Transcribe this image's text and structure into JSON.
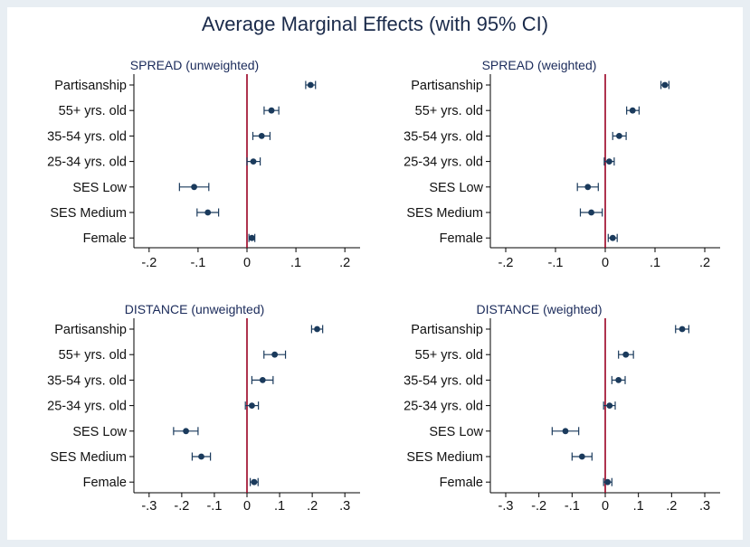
{
  "title": "Average Marginal Effects (with 95% CI)",
  "colors": {
    "point": "#1a3a5c",
    "ci": "#1a3a5c",
    "zero_line": "#990022",
    "axis": "#000000",
    "background": "#e8eef3"
  },
  "chart_data": [
    {
      "type": "scatter",
      "title": "SPREAD (unweighted)",
      "categories": [
        "Partisanship",
        "55+ yrs. old",
        "35-54 yrs. old",
        "25-34 yrs. old",
        "SES Low",
        "SES Medium",
        "Female"
      ],
      "estimates": [
        0.13,
        0.05,
        0.03,
        0.013,
        -0.108,
        -0.08,
        0.01
      ],
      "ci_low": [
        0.12,
        0.035,
        0.012,
        0.0,
        -0.138,
        -0.102,
        0.004
      ],
      "ci_high": [
        0.14,
        0.065,
        0.047,
        0.027,
        -0.078,
        -0.058,
        0.016
      ],
      "xlim": [
        -0.22,
        0.22
      ],
      "xticks": [
        -0.2,
        -0.1,
        0,
        0.1,
        0.2
      ],
      "xtick_labels": [
        "-.2",
        "-.1",
        "0",
        ".1",
        ".2"
      ]
    },
    {
      "type": "scatter",
      "title": "SPREAD (weighted)",
      "categories": [
        "Partisanship",
        "55+ yrs. old",
        "35-54 yrs. old",
        "25-34 yrs. old",
        "SES Low",
        "SES Medium",
        "Female"
      ],
      "estimates": [
        0.12,
        0.055,
        0.028,
        0.008,
        -0.035,
        -0.028,
        0.015
      ],
      "ci_low": [
        0.112,
        0.043,
        0.015,
        -0.002,
        -0.056,
        -0.05,
        0.006
      ],
      "ci_high": [
        0.128,
        0.068,
        0.042,
        0.018,
        -0.014,
        -0.006,
        0.024
      ],
      "xlim": [
        -0.22,
        0.22
      ],
      "xticks": [
        -0.2,
        -0.1,
        0,
        0.1,
        0.2
      ],
      "xtick_labels": [
        "-.2",
        "-.1",
        "0",
        ".1",
        ".2"
      ]
    },
    {
      "type": "scatter",
      "title": "DISTANCE (unweighted)",
      "categories": [
        "Partisanship",
        "55+ yrs. old",
        "35-54 yrs. old",
        "25-34 yrs. old",
        "SES Low",
        "SES Medium",
        "Female"
      ],
      "estimates": [
        0.215,
        0.085,
        0.048,
        0.015,
        -0.187,
        -0.14,
        0.022
      ],
      "ci_low": [
        0.198,
        0.052,
        0.015,
        -0.005,
        -0.225,
        -0.168,
        0.01
      ],
      "ci_high": [
        0.232,
        0.118,
        0.08,
        0.035,
        -0.15,
        -0.112,
        0.034
      ],
      "xlim": [
        -0.33,
        0.33
      ],
      "xticks": [
        -0.3,
        -0.2,
        -0.1,
        0,
        0.1,
        0.2,
        0.3
      ],
      "xtick_labels": [
        "-.3",
        "-.2",
        "-.1",
        "0",
        ".1",
        ".2",
        ".3"
      ]
    },
    {
      "type": "scatter",
      "title": "DISTANCE (weighted)",
      "categories": [
        "Partisanship",
        "55+ yrs. old",
        "35-54 yrs. old",
        "25-34 yrs. old",
        "SES Low",
        "SES Medium",
        "Female"
      ],
      "estimates": [
        0.232,
        0.062,
        0.04,
        0.013,
        -0.12,
        -0.07,
        0.007
      ],
      "ci_low": [
        0.212,
        0.04,
        0.02,
        -0.005,
        -0.16,
        -0.1,
        -0.005
      ],
      "ci_high": [
        0.252,
        0.085,
        0.06,
        0.03,
        -0.08,
        -0.04,
        0.02
      ],
      "xlim": [
        -0.33,
        0.33
      ],
      "xticks": [
        -0.3,
        -0.2,
        -0.1,
        0,
        0.1,
        0.2,
        0.3
      ],
      "xtick_labels": [
        "-.3",
        "-.2",
        "-.1",
        "0",
        ".1",
        ".2",
        ".3"
      ]
    }
  ]
}
